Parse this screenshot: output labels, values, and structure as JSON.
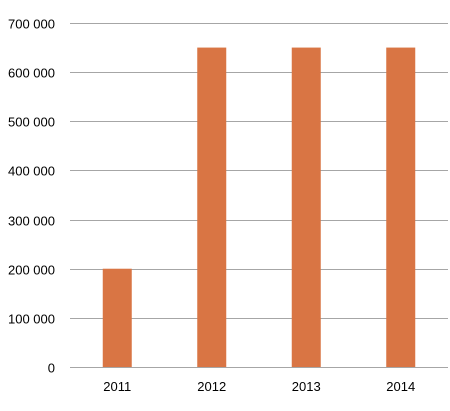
{
  "chart_data": {
    "type": "bar",
    "title": "",
    "xlabel": "",
    "ylabel": "",
    "categories": [
      "2011",
      "2012",
      "2013",
      "2014"
    ],
    "values": [
      200000,
      650000,
      650000,
      650000
    ],
    "ylim": [
      0,
      700000
    ],
    "yticks": [
      0,
      100000,
      200000,
      300000,
      400000,
      500000,
      600000,
      700000
    ],
    "ytick_labels": [
      "0",
      "100 000",
      "200 000",
      "300 000",
      "400 000",
      "500 000",
      "600 000",
      "700 000"
    ],
    "grid": true,
    "legend": "none",
    "bar_color": "#d97544",
    "grid_color": "#a6a6a6"
  }
}
